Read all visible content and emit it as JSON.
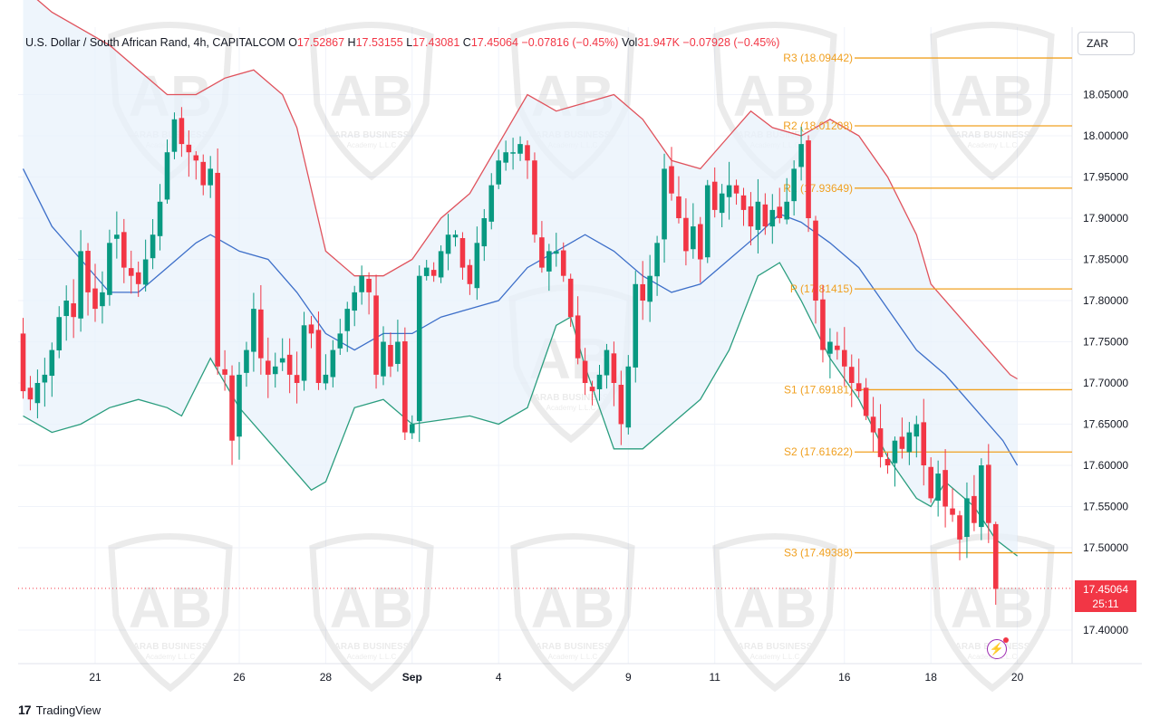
{
  "header": {
    "symbol": "U.S. Dollar / South African Rand, 4h, CAPITALCOM",
    "open_label": "O",
    "open": "17.52867",
    "high_label": "H",
    "high": "17.53155",
    "low_label": "L",
    "low": "17.43081",
    "close_label": "C",
    "close": "17.45064",
    "change": "−0.07816 (−0.45%)",
    "vol_label": "Vol",
    "vol": "31.947K",
    "vol_change": "−0.07928 (−0.45%)"
  },
  "currency_button": "ZAR",
  "last_price": "17.45064",
  "countdown": "25:11",
  "brand": "TradingView",
  "brand_mark": "17",
  "watermark": {
    "line1": "ARAB BUSINESS",
    "line2": "Academy L.L.C",
    "letters": "AB"
  },
  "alert_icon": "lightning-bolt-icon",
  "colors": {
    "up": "#089981",
    "down": "#f23645",
    "upper_band": "#e0525c",
    "basis": "#3d6fc9",
    "lower_band": "#2a9d7e",
    "pivot": "#f0a020",
    "fill": "#e8f2fb"
  },
  "chart_data": {
    "type": "candlestick",
    "title": "U.S. Dollar / South African Rand, 4h",
    "ylim": [
      17.36,
      18.11
    ],
    "y_ticks": [
      "18.05000",
      "18.00000",
      "17.95000",
      "17.90000",
      "17.85000",
      "17.80000",
      "17.75000",
      "17.70000",
      "17.65000",
      "17.60000",
      "17.55000",
      "17.50000",
      "17.40000"
    ],
    "x_ticks": [
      {
        "label": "21",
        "idx": 10
      },
      {
        "label": "26",
        "idx": 30
      },
      {
        "label": "28",
        "idx": 42
      },
      {
        "label": "Sep",
        "idx": 54
      },
      {
        "label": "4",
        "idx": 66
      },
      {
        "label": "9",
        "idx": 84
      },
      {
        "label": "11",
        "idx": 96
      },
      {
        "label": "16",
        "idx": 114
      },
      {
        "label": "18",
        "idx": 126
      },
      {
        "label": "20",
        "idx": 138
      }
    ],
    "pivots": [
      {
        "name": "R3",
        "label": "R3 (18.09442)",
        "value": 18.09442
      },
      {
        "name": "R2",
        "label": "R2 (18.01208)",
        "value": 18.01208
      },
      {
        "name": "R1",
        "label": "R1 (17.93649)",
        "value": 17.93649
      },
      {
        "name": "P",
        "label": "P (17.81415)",
        "value": 17.81415
      },
      {
        "name": "S1",
        "label": "S1 (17.69181)",
        "value": 17.69181
      },
      {
        "name": "S2",
        "label": "S2 (17.61622)",
        "value": 17.61622
      },
      {
        "name": "S3",
        "label": "S3 (17.49388)",
        "value": 17.49388
      }
    ],
    "closes": [
      17.69,
      17.68,
      17.7,
      17.71,
      17.74,
      17.78,
      17.8,
      17.78,
      17.86,
      17.81,
      17.79,
      17.81,
      17.87,
      17.88,
      17.84,
      17.83,
      17.82,
      17.85,
      17.88,
      17.92,
      17.98,
      18.02,
      17.99,
      17.98,
      17.97,
      17.94,
      17.96,
      17.72,
      17.71,
      17.63,
      17.71,
      17.74,
      17.79,
      17.73,
      17.71,
      17.72,
      17.73,
      17.71,
      17.7,
      17.77,
      17.76,
      17.7,
      17.71,
      17.74,
      17.76,
      17.79,
      17.81,
      17.83,
      17.81,
      17.71,
      17.75,
      17.72,
      17.75,
      17.64,
      17.65,
      17.83,
      17.84,
      17.83,
      17.86,
      17.88,
      17.88,
      17.84,
      17.82,
      17.87,
      17.9,
      17.94,
      17.97,
      17.98,
      17.98,
      17.99,
      17.97,
      17.88,
      17.84,
      17.86,
      17.86,
      17.83,
      17.78,
      17.73,
      17.7,
      17.69,
      17.71,
      17.74,
      17.7,
      17.65,
      17.72,
      17.82,
      17.8,
      17.83,
      17.87,
      17.96,
      17.93,
      17.9,
      17.86,
      17.89,
      17.85,
      17.94,
      17.91,
      17.93,
      17.94,
      17.93,
      17.91,
      17.89,
      17.92,
      17.89,
      17.91,
      17.9,
      17.92,
      17.96,
      17.99,
      17.9,
      17.8,
      17.74,
      17.75,
      17.74,
      17.72,
      17.7,
      17.69,
      17.66,
      17.64,
      17.61,
      17.6,
      17.63,
      17.62,
      17.64,
      17.65,
      17.6,
      17.56,
      17.59,
      17.55,
      17.54,
      17.51,
      17.56,
      17.53,
      17.6,
      17.53,
      17.45
    ],
    "upper_band": [
      [
        0,
        18.18
      ],
      [
        4,
        18.15
      ],
      [
        8,
        18.13
      ],
      [
        12,
        18.11
      ],
      [
        16,
        18.08
      ],
      [
        20,
        18.05
      ],
      [
        24,
        18.05
      ],
      [
        28,
        18.07
      ],
      [
        32,
        18.08
      ],
      [
        36,
        18.05
      ],
      [
        38,
        18.01
      ],
      [
        42,
        17.86
      ],
      [
        46,
        17.83
      ],
      [
        50,
        17.83
      ],
      [
        54,
        17.85
      ],
      [
        58,
        17.9
      ],
      [
        62,
        17.93
      ],
      [
        66,
        17.99
      ],
      [
        70,
        18.05
      ],
      [
        74,
        18.03
      ],
      [
        78,
        18.04
      ],
      [
        82,
        18.05
      ],
      [
        86,
        18.02
      ],
      [
        90,
        17.97
      ],
      [
        94,
        17.96
      ],
      [
        98,
        18.0
      ],
      [
        101,
        18.03
      ],
      [
        104,
        18.01
      ],
      [
        108,
        18.0
      ],
      [
        112,
        18.02
      ],
      [
        116,
        18.0
      ],
      [
        120,
        17.95
      ],
      [
        124,
        17.88
      ],
      [
        126,
        17.82
      ],
      [
        130,
        17.78
      ],
      [
        134,
        17.74
      ],
      [
        137,
        17.71
      ],
      [
        138,
        17.705
      ]
    ],
    "basis": [
      [
        0,
        17.96
      ],
      [
        4,
        17.89
      ],
      [
        8,
        17.85
      ],
      [
        12,
        17.81
      ],
      [
        16,
        17.81
      ],
      [
        20,
        17.84
      ],
      [
        24,
        17.87
      ],
      [
        26,
        17.88
      ],
      [
        30,
        17.86
      ],
      [
        34,
        17.85
      ],
      [
        38,
        17.81
      ],
      [
        42,
        17.76
      ],
      [
        46,
        17.74
      ],
      [
        50,
        17.76
      ],
      [
        54,
        17.76
      ],
      [
        58,
        17.78
      ],
      [
        62,
        17.79
      ],
      [
        66,
        17.8
      ],
      [
        70,
        17.84
      ],
      [
        74,
        17.86
      ],
      [
        78,
        17.88
      ],
      [
        82,
        17.86
      ],
      [
        86,
        17.83
      ],
      [
        90,
        17.81
      ],
      [
        94,
        17.82
      ],
      [
        98,
        17.85
      ],
      [
        102,
        17.88
      ],
      [
        105,
        17.905
      ],
      [
        108,
        17.895
      ],
      [
        112,
        17.87
      ],
      [
        116,
        17.84
      ],
      [
        120,
        17.79
      ],
      [
        124,
        17.74
      ],
      [
        128,
        17.71
      ],
      [
        132,
        17.67
      ],
      [
        136,
        17.63
      ],
      [
        138,
        17.6
      ]
    ],
    "lower_band": [
      [
        0,
        17.66
      ],
      [
        4,
        17.64
      ],
      [
        8,
        17.65
      ],
      [
        12,
        17.67
      ],
      [
        16,
        17.68
      ],
      [
        20,
        17.67
      ],
      [
        22,
        17.66
      ],
      [
        26,
        17.73
      ],
      [
        30,
        17.67
      ],
      [
        34,
        17.63
      ],
      [
        38,
        17.59
      ],
      [
        40,
        17.57
      ],
      [
        42,
        17.58
      ],
      [
        46,
        17.67
      ],
      [
        50,
        17.68
      ],
      [
        54,
        17.65
      ],
      [
        58,
        17.655
      ],
      [
        62,
        17.66
      ],
      [
        66,
        17.65
      ],
      [
        70,
        17.67
      ],
      [
        74,
        17.77
      ],
      [
        76,
        17.78
      ],
      [
        78,
        17.72
      ],
      [
        82,
        17.62
      ],
      [
        86,
        17.62
      ],
      [
        90,
        17.65
      ],
      [
        94,
        17.68
      ],
      [
        98,
        17.74
      ],
      [
        102,
        17.83
      ],
      [
        105,
        17.846
      ],
      [
        108,
        17.8
      ],
      [
        112,
        17.73
      ],
      [
        116,
        17.68
      ],
      [
        120,
        17.61
      ],
      [
        124,
        17.56
      ],
      [
        126,
        17.55
      ],
      [
        128,
        17.58
      ],
      [
        132,
        17.55
      ],
      [
        135,
        17.51
      ],
      [
        138,
        17.49
      ]
    ]
  }
}
